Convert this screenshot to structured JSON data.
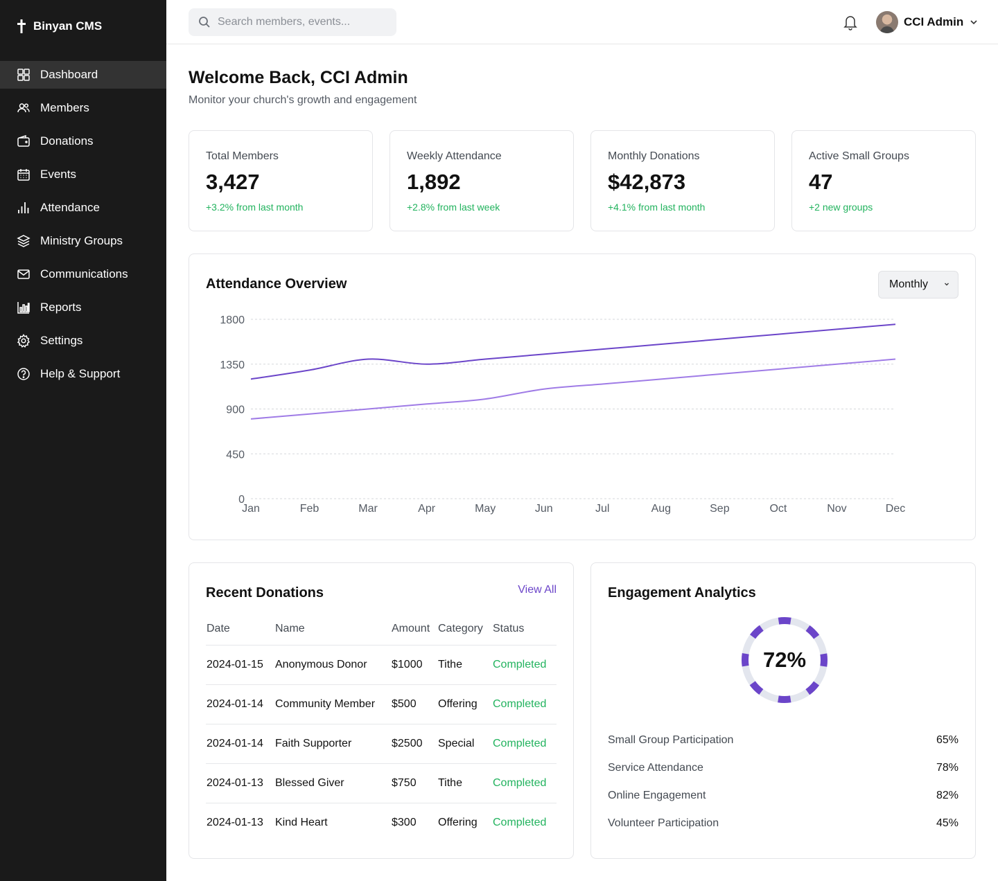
{
  "brand": {
    "name": "Binyan CMS"
  },
  "sidebar": {
    "items": [
      {
        "label": "Dashboard",
        "icon": "dashboard-icon",
        "active": true
      },
      {
        "label": "Members",
        "icon": "users-icon"
      },
      {
        "label": "Donations",
        "icon": "wallet-icon"
      },
      {
        "label": "Events",
        "icon": "calendar-icon"
      },
      {
        "label": "Attendance",
        "icon": "bar-chart-icon"
      },
      {
        "label": "Ministry Groups",
        "icon": "layers-icon"
      },
      {
        "label": "Communications",
        "icon": "mail-icon"
      },
      {
        "label": "Reports",
        "icon": "reports-icon"
      },
      {
        "label": "Settings",
        "icon": "gear-icon"
      },
      {
        "label": "Help & Support",
        "icon": "help-icon"
      }
    ]
  },
  "header": {
    "search_placeholder": "Search members, events...",
    "user_name": "CCI Admin"
  },
  "main": {
    "title": "Welcome Back, CCI Admin",
    "subtitle": "Monitor your church's growth and engagement"
  },
  "stats": [
    {
      "label": "Total Members",
      "value": "3,427",
      "change": "+3.2% from last month"
    },
    {
      "label": "Weekly Attendance",
      "value": "1,892",
      "change": "+2.8% from last week"
    },
    {
      "label": "Monthly Donations",
      "value": "$42,873",
      "change": "+4.1% from last month"
    },
    {
      "label": "Active Small Groups",
      "value": "47",
      "change": "+2 new groups"
    }
  ],
  "attendance": {
    "title": "Attendance Overview",
    "period": "Monthly"
  },
  "chart_data": {
    "type": "line",
    "title": "Attendance Overview",
    "categories": [
      "Jan",
      "Feb",
      "Mar",
      "Apr",
      "May",
      "Jun",
      "Jul",
      "Aug",
      "Sep",
      "Oct",
      "Nov",
      "Dec"
    ],
    "yticks": [
      0,
      450,
      900,
      1350,
      1800
    ],
    "ylim": [
      0,
      1800
    ],
    "grid": true,
    "series": [
      {
        "values": [
          1200,
          1290,
          1400,
          1350,
          1400,
          1450,
          1500,
          1550,
          1600,
          1650,
          1700,
          1750
        ],
        "color": "#6b45c9"
      },
      {
        "values": [
          800,
          850,
          900,
          950,
          1000,
          1100,
          1150,
          1200,
          1250,
          1300,
          1350,
          1400
        ],
        "color": "#9f7be6"
      }
    ]
  },
  "donations": {
    "title": "Recent Donations",
    "view_all": "View All",
    "columns": [
      "Date",
      "Name",
      "Amount",
      "Category",
      "Status"
    ],
    "rows": [
      [
        "2024-01-15",
        "Anonymous Donor",
        "$1000",
        "Tithe",
        "Completed"
      ],
      [
        "2024-01-14",
        "Community Member",
        "$500",
        "Offering",
        "Completed"
      ],
      [
        "2024-01-14",
        "Faith Supporter",
        "$2500",
        "Special",
        "Completed"
      ],
      [
        "2024-01-13",
        "Blessed Giver",
        "$750",
        "Tithe",
        "Completed"
      ],
      [
        "2024-01-13",
        "Kind Heart",
        "$300",
        "Offering",
        "Completed"
      ]
    ]
  },
  "engagement": {
    "title": "Engagement Analytics",
    "overall": "72%",
    "overall_value": 72,
    "metrics": [
      {
        "label": "Small Group Participation",
        "value": "65%"
      },
      {
        "label": "Service Attendance",
        "value": "78%"
      },
      {
        "label": "Online Engagement",
        "value": "82%"
      },
      {
        "label": "Volunteer Participation",
        "value": "45%"
      }
    ]
  },
  "colors": {
    "accent": "#6b45c9",
    "accent_light": "#9f7be6",
    "positive": "#22b35e",
    "sidebar_bg": "#1a1a1a"
  }
}
